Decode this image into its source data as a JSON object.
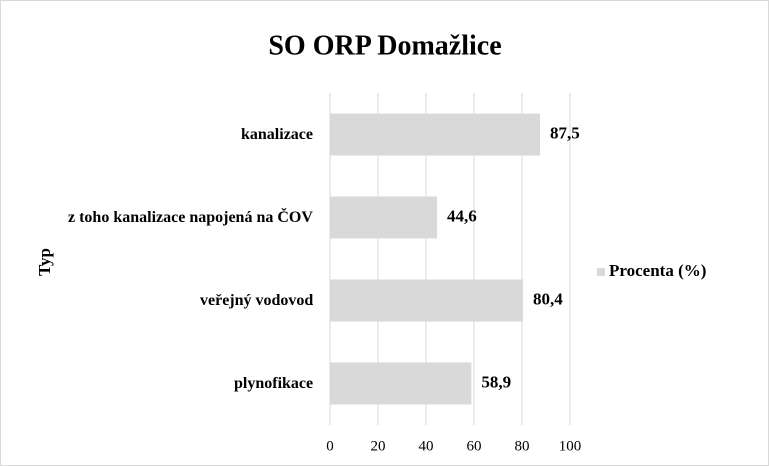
{
  "chart_data": {
    "type": "bar",
    "orientation": "horizontal",
    "title": "SO ORP Domažlice",
    "y_label": "Typ",
    "categories": [
      "kanalizace",
      "z toho kanalizace napojená na ČOV",
      "veřejný vodovod",
      "plynofikace"
    ],
    "series": [
      {
        "name": "Procenta (%)",
        "color": "#d9d9d9",
        "values": [
          87.5,
          44.6,
          80.4,
          58.9
        ],
        "value_labels": [
          "87,5",
          "44,6",
          "80,4",
          "58,9"
        ]
      }
    ],
    "xlim": [
      0,
      100
    ],
    "xticks": [
      0,
      20,
      40,
      60,
      80,
      100
    ],
    "grid": true,
    "legend": "right"
  }
}
